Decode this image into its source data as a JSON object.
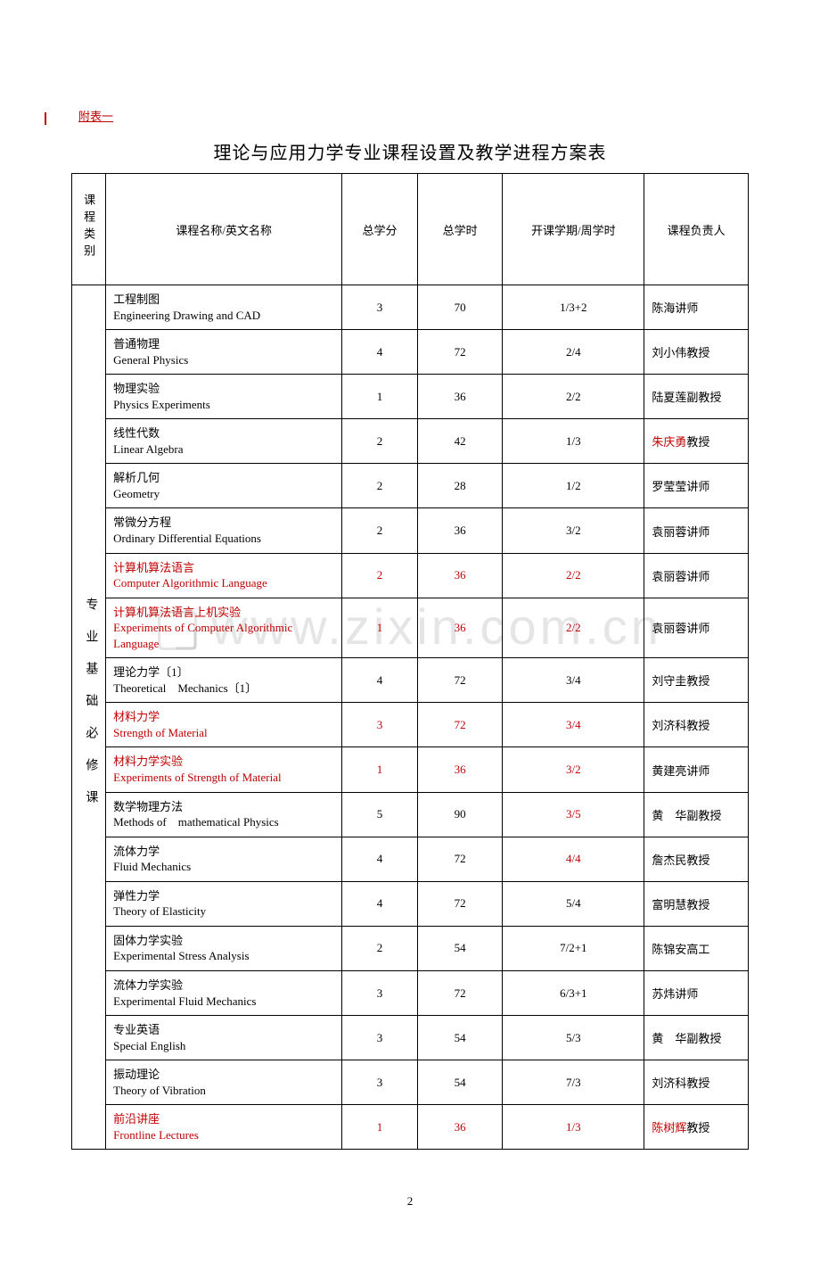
{
  "page_number": "2",
  "attachment_label": "附表一",
  "title": "理论与应用力学专业课程设置及教学进程方案表",
  "watermark_text": "www.zixin.com.cn",
  "category_label": "专业基础必修课",
  "headers": {
    "cat": "课程类别",
    "name": "课程名称/英文名称",
    "credit": "总学分",
    "hours": "总学时",
    "semester": "开课学期/周学时",
    "instructor": "课程负责人"
  },
  "columns_style": {
    "cat_width": 36,
    "name_width": 250,
    "credit_width": 80,
    "hours_width": 90,
    "sem_width": 150,
    "inst_width": 110
  },
  "rows": [
    {
      "cn": "工程制图",
      "en": "Engineering Drawing and CAD",
      "credit": "3",
      "hours": "70",
      "sem": "1/3+2",
      "inst_pre": "陈海",
      "inst_suf": "讲师",
      "red_name": false,
      "red_credit": false,
      "red_hours": false,
      "red_sem": false,
      "red_inst_pre": false
    },
    {
      "cn": "普通物理",
      "en": "General Physics",
      "credit": "4",
      "hours": "72",
      "sem": "2/4",
      "inst_pre": "刘小伟",
      "inst_suf": "教授",
      "red_name": false,
      "red_credit": false,
      "red_hours": false,
      "red_sem": false,
      "red_inst_pre": false
    },
    {
      "cn": "物理实验",
      "en": "Physics Experiments",
      "credit": "1",
      "hours": "36",
      "sem": "2/2",
      "inst_pre": "陆夏莲",
      "inst_suf": "副教授",
      "red_name": false,
      "red_credit": false,
      "red_hours": false,
      "red_sem": false,
      "red_inst_pre": false
    },
    {
      "cn": "线性代数",
      "en": "Linear Algebra",
      "credit": "2",
      "hours": "42",
      "sem": "1/3",
      "inst_pre": "朱庆勇",
      "inst_suf": "教授",
      "red_name": false,
      "red_credit": false,
      "red_hours": false,
      "red_sem": false,
      "red_inst_pre": true
    },
    {
      "cn": "解析几何",
      "en": "Geometry",
      "credit": "2",
      "hours": "28",
      "sem": "1/2",
      "inst_pre": "罗莹莹",
      "inst_suf": "讲师",
      "red_name": false,
      "red_credit": false,
      "red_hours": false,
      "red_sem": false,
      "red_inst_pre": false
    },
    {
      "cn": "常微分方程",
      "en": "Ordinary Differential Equations",
      "credit": "2",
      "hours": "36",
      "sem": "3/2",
      "inst_pre": "袁丽蓉",
      "inst_suf": "讲师",
      "red_name": false,
      "red_credit": false,
      "red_hours": false,
      "red_sem": false,
      "red_inst_pre": false
    },
    {
      "cn": "计算机算法语言",
      "en": "Computer Algorithmic Language",
      "credit": "2",
      "hours": "36",
      "sem": "2/2",
      "inst_pre": "袁丽蓉",
      "inst_suf": "讲师",
      "red_name": true,
      "red_credit": true,
      "red_hours": true,
      "red_sem": true,
      "red_inst_pre": false
    },
    {
      "cn": "计算机算法语言上机实验",
      "en": "Experiments of Computer Algorithmic Language",
      "credit": "1",
      "hours": "36",
      "sem": "2/2",
      "inst_pre": "袁丽蓉",
      "inst_suf": "讲师",
      "red_name": true,
      "red_credit": true,
      "red_hours": true,
      "red_sem": true,
      "red_inst_pre": false
    },
    {
      "cn": "理论力学〔1〕",
      "en": "Theoretical　Mechanics〔1〕",
      "credit": "4",
      "hours": "72",
      "sem": "3/4",
      "inst_pre": "刘守圭",
      "inst_suf": "教授",
      "red_name": false,
      "red_credit": false,
      "red_hours": false,
      "red_sem": false,
      "red_inst_pre": false
    },
    {
      "cn": "材料力学",
      "en": "Strength of Material",
      "credit": "3",
      "hours": "72",
      "sem": "3/4",
      "inst_pre": "刘济科",
      "inst_suf": "教授",
      "red_name": true,
      "red_credit": true,
      "red_hours": true,
      "red_sem": true,
      "red_inst_pre": false
    },
    {
      "cn": "材料力学实验",
      "en": "Experiments of Strength of Material",
      "credit": "1",
      "hours": "36",
      "sem": "3/2",
      "inst_pre": "黄建亮",
      "inst_suf": "讲师",
      "red_name": true,
      "red_credit": true,
      "red_hours": true,
      "red_sem": true,
      "red_inst_pre": false
    },
    {
      "cn": "数学物理方法",
      "en": "Methods of　mathematical Physics",
      "credit": "5",
      "hours": "90",
      "sem": "3/5",
      "inst_pre": "黄　华",
      "inst_suf": "副教授",
      "red_name": false,
      "red_credit": false,
      "red_hours": false,
      "red_sem": true,
      "red_inst_pre": false
    },
    {
      "cn": "流体力学",
      "en": "Fluid Mechanics",
      "credit": "4",
      "hours": "72",
      "sem": "4/4",
      "inst_pre": "詹杰民",
      "inst_suf": "教授",
      "red_name": false,
      "red_credit": false,
      "red_hours": false,
      "red_sem": true,
      "red_inst_pre": false
    },
    {
      "cn": "弹性力学",
      "en": "Theory of Elasticity",
      "credit": "4",
      "hours": "72",
      "sem": "5/4",
      "inst_pre": "富明慧",
      "inst_suf": "教授",
      "red_name": false,
      "red_credit": false,
      "red_hours": false,
      "red_sem": false,
      "red_inst_pre": false
    },
    {
      "cn": "固体力学实验",
      "en": "Experimental Stress Analysis",
      "credit": "2",
      "hours": "54",
      "sem": "7/2+1",
      "inst_pre": "陈锦安",
      "inst_suf": "高工",
      "red_name": false,
      "red_credit": false,
      "red_hours": false,
      "red_sem": false,
      "red_inst_pre": false
    },
    {
      "cn": "流体力学实验",
      "en": "Experimental Fluid Mechanics",
      "credit": "3",
      "hours": "72",
      "sem": "6/3+1",
      "inst_pre": "苏炜",
      "inst_suf": "讲师",
      "red_name": false,
      "red_credit": false,
      "red_hours": false,
      "red_sem": false,
      "red_inst_pre": false
    },
    {
      "cn": "专业英语",
      "en": "Special English",
      "credit": "3",
      "hours": "54",
      "sem": "5/3",
      "inst_pre": "黄　华",
      "inst_suf": "副教授",
      "red_name": false,
      "red_credit": false,
      "red_hours": false,
      "red_sem": false,
      "red_inst_pre": false
    },
    {
      "cn": "振动理论",
      "en": "Theory of Vibration",
      "credit": "3",
      "hours": "54",
      "sem": "7/3",
      "inst_pre": "刘济科",
      "inst_suf": "教授",
      "red_name": false,
      "red_credit": false,
      "red_hours": false,
      "red_sem": false,
      "red_inst_pre": false
    },
    {
      "cn": "前沿讲座",
      "en": "Frontline Lectures",
      "credit": "1",
      "hours": "36",
      "sem": "1/3",
      "inst_pre": "陈树辉",
      "inst_suf": "教授",
      "red_name": true,
      "red_credit": true,
      "red_hours": true,
      "red_sem": true,
      "red_inst_pre": true
    }
  ]
}
